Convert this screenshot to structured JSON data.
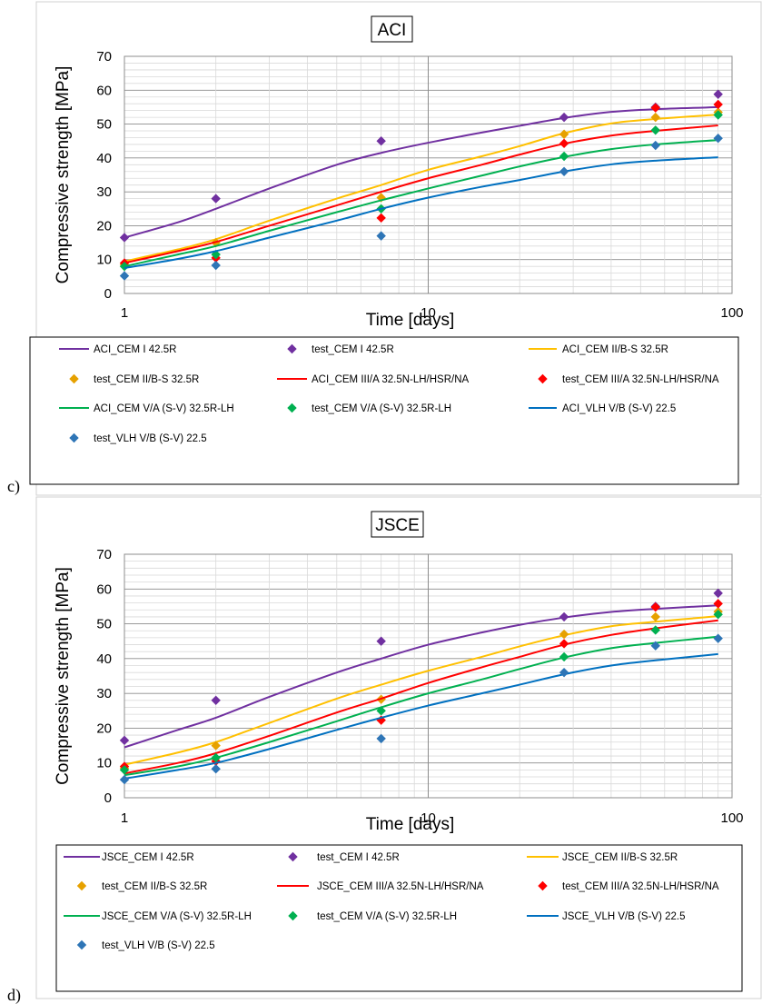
{
  "chart_data": [
    {
      "type": "line",
      "panel_label": "c)",
      "title": "ACI",
      "xlabel": "Time [days]",
      "ylabel": "Compressive strength [MPa]",
      "xscale": "log",
      "xlim": [
        1,
        100
      ],
      "ylim": [
        0,
        70
      ],
      "x_ticks": [
        "1",
        "10",
        "100"
      ],
      "y_ticks": [
        "0",
        "10",
        "20",
        "30",
        "40",
        "50",
        "60",
        "70"
      ],
      "grid": true,
      "legend_position": "bottom",
      "series": [
        {
          "name": "ACI_CEM I 42.5R",
          "kind": "line",
          "color": "#7030A0",
          "x": [
            1,
            1.5,
            2,
            3,
            5,
            7,
            10,
            15,
            20,
            28,
            40,
            56,
            90
          ],
          "y": [
            16.5,
            21,
            25,
            31,
            38,
            41.5,
            44.5,
            47.5,
            49.5,
            51.8,
            53.6,
            54.4,
            55
          ]
        },
        {
          "name": "test_CEM I 42.5R",
          "kind": "marker",
          "color": "#7030A0",
          "x": [
            1,
            2,
            7,
            28,
            56,
            90
          ],
          "y": [
            16.5,
            28,
            45,
            52,
            55,
            58.8
          ]
        },
        {
          "name": "ACI_CEM II/B-S 32.5R",
          "kind": "line",
          "color": "#FFC000",
          "x": [
            1,
            1.5,
            2,
            3,
            5,
            7,
            10,
            15,
            20,
            28,
            40,
            56,
            90
          ],
          "y": [
            9.5,
            13,
            16,
            21.5,
            28,
            32,
            36.5,
            40.5,
            43.5,
            47.3,
            50.2,
            51.5,
            52.8
          ]
        },
        {
          "name": "test_CEM II/B-S 32.5R",
          "kind": "marker",
          "color": "#E6A100",
          "x": [
            1,
            2,
            7,
            28,
            56,
            90
          ],
          "y": [
            8.5,
            15,
            28.3,
            47,
            52,
            53.5
          ]
        },
        {
          "name": "ACI_CEM III/A 32.5N-LH/HSR/NA",
          "kind": "line",
          "color": "#FF0000",
          "x": [
            1,
            1.5,
            2,
            3,
            5,
            7,
            10,
            15,
            20,
            28,
            40,
            56,
            90
          ],
          "y": [
            9,
            12.5,
            15.2,
            20,
            26,
            30,
            34,
            38,
            41,
            44.2,
            46.6,
            48,
            49.6
          ]
        },
        {
          "name": "test_CEM III/A 32.5N-LH/HSR/NA",
          "kind": "marker",
          "color": "#FF0000",
          "x": [
            1,
            2,
            7,
            28,
            56,
            90
          ],
          "y": [
            9,
            10.5,
            22.3,
            44.3,
            54.8,
            55.8
          ]
        },
        {
          "name": "ACI_CEM V/A (S-V) 32.5R-LH",
          "kind": "line",
          "color": "#00B050",
          "x": [
            1,
            1.5,
            2,
            3,
            5,
            7,
            10,
            15,
            20,
            28,
            40,
            56,
            90
          ],
          "y": [
            8,
            11.5,
            14,
            18.5,
            24,
            27.5,
            31,
            34.8,
            37.5,
            40.3,
            42.6,
            44,
            45.3
          ]
        },
        {
          "name": "test_CEM V/A (S-V) 32.5R-LH",
          "kind": "marker",
          "color": "#00B050",
          "x": [
            1,
            2,
            7,
            28,
            56,
            90
          ],
          "y": [
            8,
            11.5,
            25,
            40.5,
            48.2,
            52.7
          ]
        },
        {
          "name": "ACI_VLH V/B (S-V) 22.5",
          "kind": "line",
          "color": "#0070C0",
          "x": [
            1,
            1.5,
            2,
            3,
            5,
            7,
            10,
            15,
            20,
            28,
            40,
            56,
            90
          ],
          "y": [
            7.5,
            10.2,
            12.5,
            16.5,
            21.5,
            25,
            28.3,
            31.5,
            33.5,
            36,
            38.1,
            39.2,
            40.2
          ]
        },
        {
          "name": "test_VLH V/B (S-V) 22.5",
          "kind": "marker",
          "color": "#2E75B6",
          "x": [
            1,
            2,
            7,
            28,
            56,
            90
          ],
          "y": [
            5.2,
            8.3,
            17,
            36,
            43.7,
            45.8
          ]
        }
      ]
    },
    {
      "type": "line",
      "panel_label": "d)",
      "title": "JSCE",
      "xlabel": "Time [days]",
      "ylabel": "Compressive strength [MPa]",
      "xscale": "log",
      "xlim": [
        1,
        100
      ],
      "ylim": [
        0,
        70
      ],
      "x_ticks": [
        "1",
        "10",
        "100"
      ],
      "y_ticks": [
        "0",
        "10",
        "20",
        "30",
        "40",
        "50",
        "60",
        "70"
      ],
      "grid": true,
      "legend_position": "bottom",
      "series": [
        {
          "name": "JSCE_CEM I 42.5R",
          "kind": "line",
          "color": "#7030A0",
          "x": [
            1,
            1.5,
            2,
            3,
            5,
            7,
            10,
            15,
            20,
            28,
            40,
            56,
            90
          ],
          "y": [
            14.5,
            19.5,
            23,
            29,
            36,
            40,
            44,
            47.5,
            49.7,
            51.8,
            53.4,
            54.3,
            55.3
          ]
        },
        {
          "name": "test_CEM I 42.5R",
          "kind": "marker",
          "color": "#7030A0",
          "x": [
            1,
            2,
            7,
            28,
            56,
            90
          ],
          "y": [
            16.5,
            28,
            45,
            52,
            55,
            58.8
          ]
        },
        {
          "name": "JSCE_CEM II/B-S 32.5R",
          "kind": "line",
          "color": "#FFC000",
          "x": [
            1,
            1.5,
            2,
            3,
            5,
            7,
            10,
            15,
            20,
            28,
            40,
            56,
            90
          ],
          "y": [
            9.5,
            13,
            16,
            21.5,
            28.5,
            32.5,
            36.5,
            40.5,
            43.5,
            46.7,
            49.3,
            50.6,
            52.2
          ]
        },
        {
          "name": "test_CEM II/B-S 32.5R",
          "kind": "marker",
          "color": "#E6A100",
          "x": [
            1,
            2,
            7,
            28,
            56,
            90
          ],
          "y": [
            8.5,
            15,
            28.3,
            47,
            52,
            53.5
          ]
        },
        {
          "name": "JSCE_CEM III/A 32.5N-LH/HSR/NA",
          "kind": "line",
          "color": "#FF0000",
          "x": [
            1,
            1.5,
            2,
            3,
            5,
            7,
            10,
            15,
            20,
            28,
            40,
            56,
            90
          ],
          "y": [
            7,
            10,
            12.8,
            17.8,
            24.5,
            28.5,
            33,
            37.5,
            40.5,
            44,
            46.8,
            48.7,
            51
          ]
        },
        {
          "name": "test_CEM III/A 32.5N-LH/HSR/NA",
          "kind": "marker",
          "color": "#FF0000",
          "x": [
            1,
            2,
            7,
            28,
            56,
            90
          ],
          "y": [
            9,
            10.5,
            22.3,
            44.3,
            54.8,
            55.8
          ]
        },
        {
          "name": "JSCE_CEM V/A (S-V) 32.5R-LH",
          "kind": "line",
          "color": "#00B050",
          "x": [
            1,
            1.5,
            2,
            3,
            5,
            7,
            10,
            15,
            20,
            28,
            40,
            56,
            90
          ],
          "y": [
            6.5,
            9,
            11.5,
            16,
            22,
            26,
            30,
            34,
            37,
            40.3,
            43,
            44.5,
            46.3
          ]
        },
        {
          "name": "test_CEM V/A (S-V) 32.5R-LH",
          "kind": "marker",
          "color": "#00B050",
          "x": [
            1,
            2,
            7,
            28,
            56,
            90
          ],
          "y": [
            8,
            11.5,
            25,
            40.5,
            48.2,
            52.7
          ]
        },
        {
          "name": "JSCE_VLH V/B (S-V) 22.5",
          "kind": "line",
          "color": "#0070C0",
          "x": [
            1,
            1.5,
            2,
            3,
            5,
            7,
            10,
            15,
            20,
            28,
            40,
            56,
            90
          ],
          "y": [
            5.5,
            8,
            10,
            14,
            19.5,
            23,
            26.5,
            30,
            32.5,
            35.5,
            38,
            39.5,
            41.3
          ]
        },
        {
          "name": "test_VLH V/B (S-V) 22.5",
          "kind": "marker",
          "color": "#2E75B6",
          "x": [
            1,
            2,
            7,
            28,
            56,
            90
          ],
          "y": [
            5.2,
            8.3,
            17,
            36,
            43.7,
            45.8
          ]
        }
      ]
    }
  ]
}
